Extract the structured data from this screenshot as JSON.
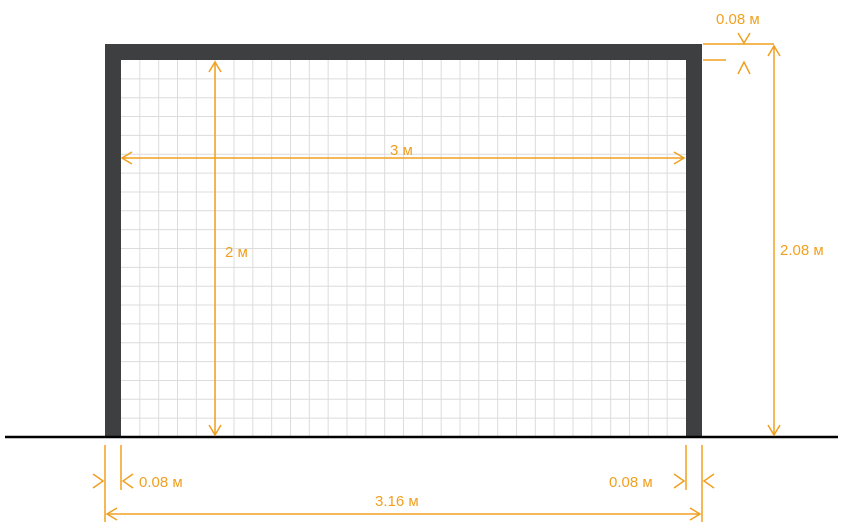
{
  "colors": {
    "frame": "#3d3f41",
    "net": "#dcdcdc",
    "dimension": "#f0a020",
    "ground": "#000000"
  },
  "labels": {
    "inner_width": "3 м",
    "inner_height": "2 м",
    "outer_height": "2.08 м",
    "top_bar": "0.08 м",
    "left_post": "0.08 м",
    "right_post": "0.08 м",
    "outer_width": "3.16 м"
  }
}
